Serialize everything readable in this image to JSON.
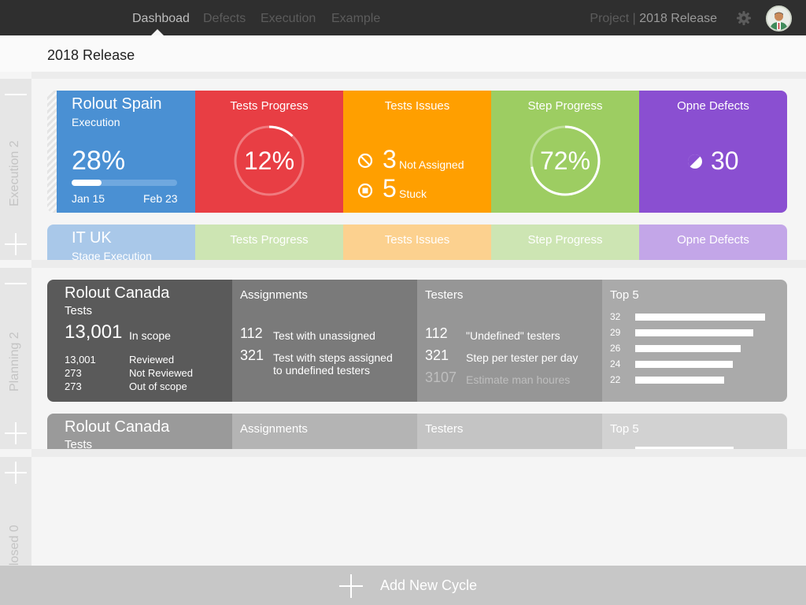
{
  "nav": {
    "tabs": [
      {
        "label": "Dashboad"
      },
      {
        "label": "Defects"
      },
      {
        "label": "Execution"
      },
      {
        "label": "Example"
      }
    ],
    "project_label": "Project",
    "project_value": "2018 Release"
  },
  "page_title": "2018 Release",
  "sections": [
    {
      "label": "Execution 2"
    },
    {
      "label": "Planning 2"
    },
    {
      "label": "losed 0"
    }
  ],
  "exec_card": {
    "name": "Rolout Spain",
    "subtitle": "Execution",
    "percent": "28%",
    "progress": 0.28,
    "start": "Jan 15",
    "end": "Feb 23",
    "tests_progress": {
      "title": "Tests Progress",
      "value": "12%",
      "fraction": 0.12
    },
    "tests_issues": {
      "title": "Tests Issues",
      "not_assigned_count": "3",
      "not_assigned_label": "Not Assigned",
      "stuck_count": "5",
      "stuck_label": "Stuck"
    },
    "step_progress": {
      "title": "Step Progress",
      "value": "72%",
      "fraction": 0.72
    },
    "open_defects": {
      "title": "Opne Defects",
      "count": "30"
    }
  },
  "exec_card_2": {
    "name": "IT UK",
    "subtitle": "Stage Execution",
    "tests_progress": "Tests Progress",
    "tests_issues": "Tests Issues",
    "step_progress": "Step Progress",
    "open_defects": "Opne Defects"
  },
  "plan_card": {
    "name": "Rolout Canada",
    "subtitle": "Tests",
    "total": "13,001",
    "total_label": "In scope",
    "rows": [
      {
        "value": "13,001",
        "label": "Reviewed"
      },
      {
        "value": "273",
        "label": "Not Reviewed"
      },
      {
        "value": "273",
        "label": "Out of scope"
      }
    ],
    "assignments": {
      "title": "Assignments",
      "rows": [
        {
          "value": "112",
          "label": "Test with unassigned"
        },
        {
          "value": "321",
          "label": "Test with steps assigned to undefined testers"
        }
      ]
    },
    "testers": {
      "title": "Testers",
      "rows": [
        {
          "value": "112",
          "label": "\"Undefined\" testers"
        },
        {
          "value": "321",
          "label": "Step per tester per day"
        },
        {
          "value": "3107",
          "label": "Estimate man houres"
        }
      ]
    },
    "top5": {
      "title": "Top 5",
      "values": [
        32,
        29,
        26,
        24,
        22
      ]
    }
  },
  "plan_card_2": {
    "name": "Rolout Canada",
    "subtitle": "Tests",
    "assignments": "Assignments",
    "testers": "Testers",
    "top5": "Top 5"
  },
  "footer": {
    "label": "Add New Cycle"
  },
  "colors": {
    "blue": "#4a90d3",
    "red": "#e83e44",
    "orange": "#ff9f00",
    "green": "#9dcd62",
    "purple": "#8a4fd1"
  }
}
